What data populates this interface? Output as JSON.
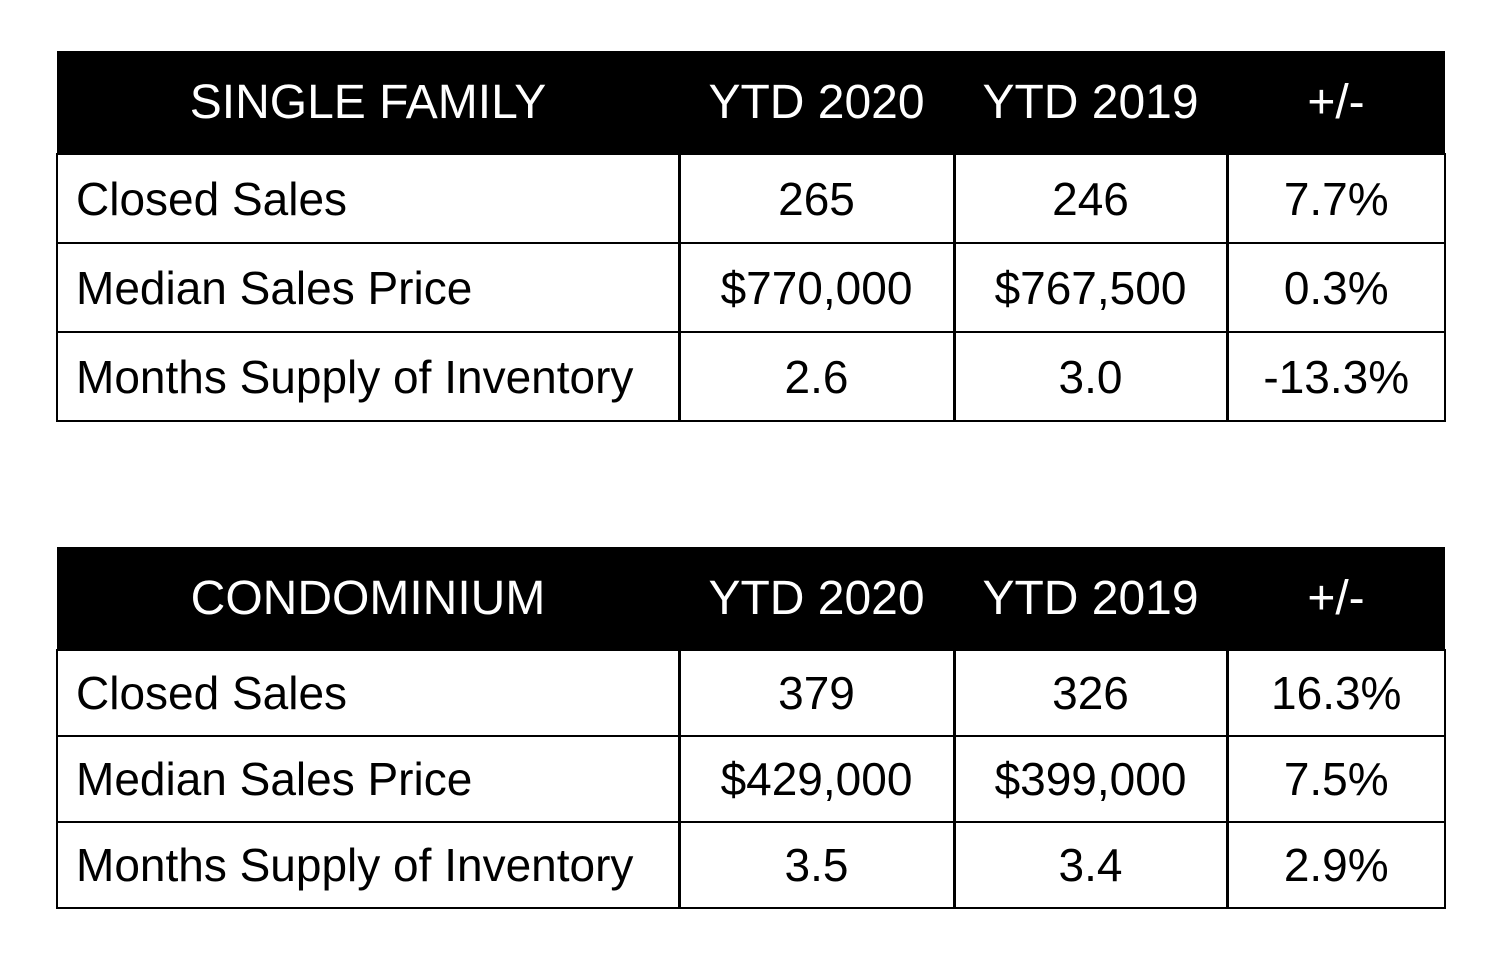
{
  "tables": [
    {
      "headers": [
        "SINGLE FAMILY",
        "YTD 2020",
        "YTD 2019",
        "+/-"
      ],
      "rows": [
        [
          "Closed Sales",
          "265",
          "246",
          "7.7%"
        ],
        [
          "Median Sales Price",
          "$770,000",
          "$767,500",
          "0.3%"
        ],
        [
          "Months Supply of Inventory",
          "2.6",
          "3.0",
          "-13.3%"
        ]
      ]
    },
    {
      "headers": [
        "CONDOMINIUM",
        "YTD 2020",
        "YTD 2019",
        "+/-"
      ],
      "rows": [
        [
          "Closed Sales",
          "379",
          "326",
          "16.3%"
        ],
        [
          "Median Sales Price",
          "$429,000",
          "$399,000",
          "7.5%"
        ],
        [
          "Months Supply of Inventory",
          "3.5",
          "3.4",
          "2.9%"
        ]
      ]
    }
  ],
  "colors": {
    "header_bg": "#000000",
    "header_text": "#ffffff",
    "border": "#000000",
    "background": "#ffffff"
  }
}
